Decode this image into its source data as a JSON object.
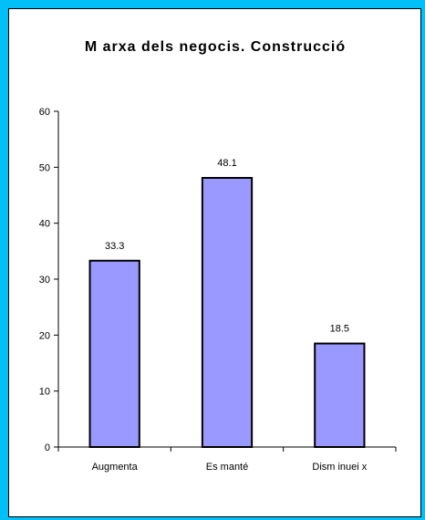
{
  "colors": {
    "frame": "#00c0f8",
    "bar_fill": "#9999ff",
    "bar_stroke": "#000000",
    "axis": "#000000"
  },
  "chart_data": {
    "type": "bar",
    "title": "M arxa dels negocis. Construcció",
    "xlabel": "",
    "ylabel": "",
    "categories": [
      "Augmenta",
      "Es manté",
      "Disminueix"
    ],
    "category_labels_displayed": [
      "Augmenta",
      "Es manté",
      "Dism inuei x"
    ],
    "values": [
      33.3,
      48.1,
      18.5
    ],
    "value_labels": [
      "33.3",
      "48.1",
      "18.5"
    ],
    "ylim": [
      0,
      60
    ],
    "yticks": [
      0,
      10,
      20,
      30,
      40,
      50,
      60
    ],
    "grid": false,
    "legend": "none"
  }
}
